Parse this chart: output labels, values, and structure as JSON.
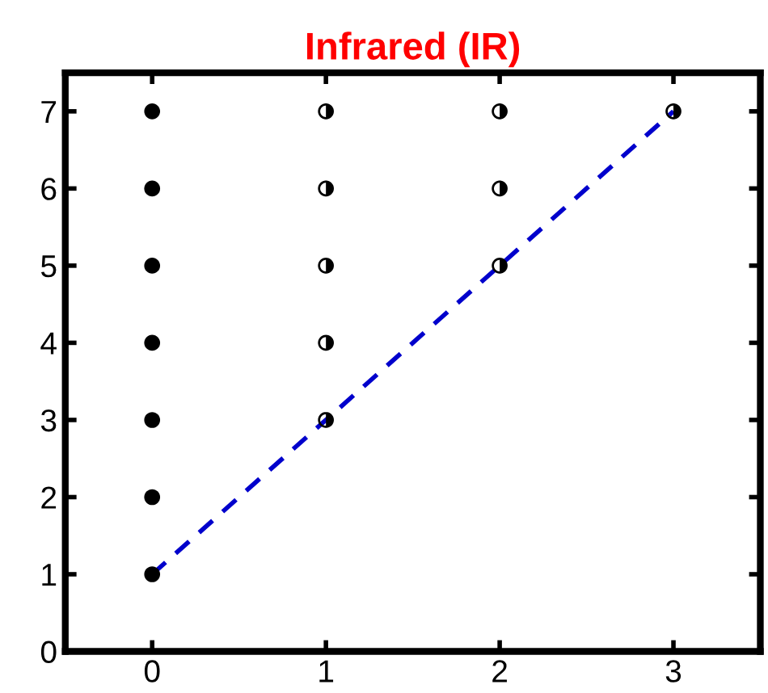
{
  "chart_data": {
    "type": "scatter",
    "title": "Infrared (IR)",
    "xlim": [
      -0.5,
      3.5
    ],
    "xticks": [
      0,
      1,
      2,
      3
    ],
    "ylim": [
      0,
      7.5
    ],
    "yticks": [
      0,
      1,
      2,
      3,
      4,
      5,
      6,
      7
    ],
    "grid": false,
    "legend": false,
    "marker": "circle",
    "series": [
      {
        "color": "#000000",
        "x": [
          0,
          0,
          0,
          0,
          0,
          0,
          0
        ],
        "values": [
          1,
          2,
          3,
          4,
          5,
          6,
          7
        ]
      },
      {
        "color": "#000000",
        "x": [
          1,
          1,
          1,
          1,
          1,
          2,
          2,
          2,
          3
        ],
        "values": [
          3,
          4,
          5,
          6,
          7,
          5,
          6,
          7,
          7
        ]
      },
      {
        "type": "line",
        "color": "#0000cc",
        "line_style": "dashed",
        "marker": "none",
        "x": [
          0,
          3
        ],
        "values": [
          1,
          7
        ]
      }
    ]
  }
}
